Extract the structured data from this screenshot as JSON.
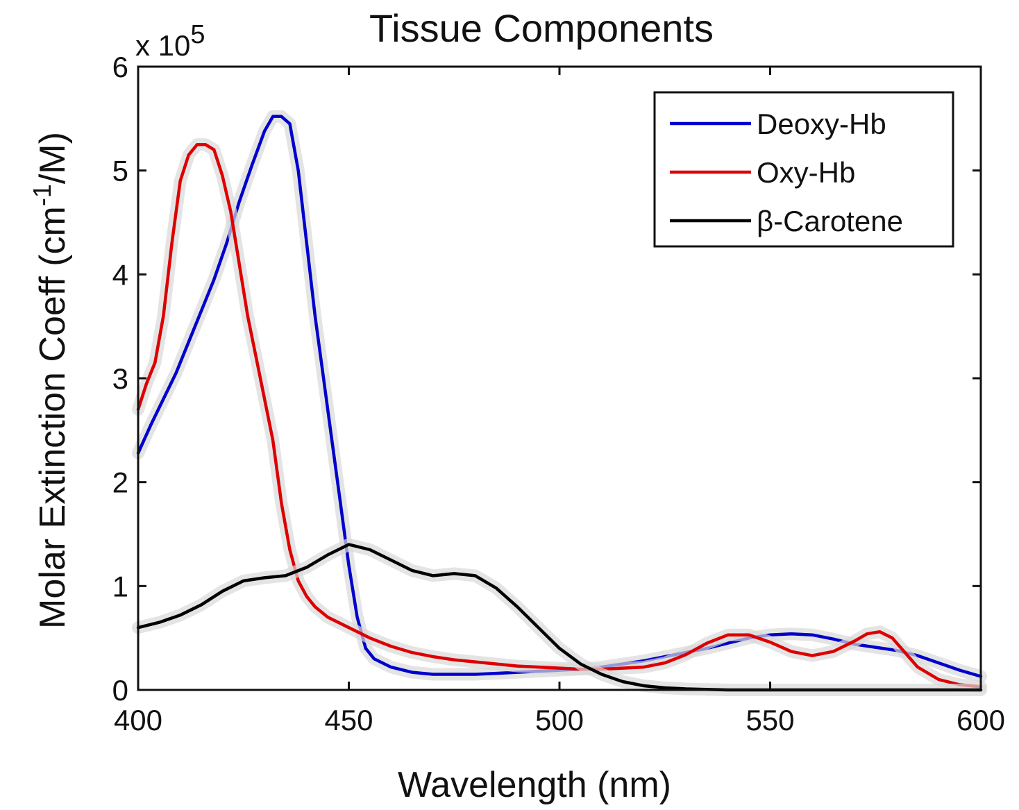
{
  "chart_data": {
    "type": "line",
    "title": "Tissue Components",
    "xlabel": "Wavelength (nm)",
    "ylabel": "Molar Extinction Coeff (cm-1/M)",
    "ylabel_parts": {
      "pre": "Molar Extinction Coeff (cm",
      "sup": "-1",
      "post": "/M)"
    },
    "y_multiplier": {
      "base": "x 10",
      "exp": "5"
    },
    "xlim": [
      400,
      600
    ],
    "ylim": [
      0,
      6
    ],
    "x_ticks": [
      400,
      450,
      500,
      550,
      600
    ],
    "y_ticks": [
      0,
      1,
      2,
      3,
      4,
      5,
      6
    ],
    "legend_position": "top-right",
    "series": [
      {
        "name": "Deoxy-Hb",
        "color": "#0000cc",
        "points": [
          [
            400,
            2.28
          ],
          [
            403,
            2.55
          ],
          [
            406,
            2.8
          ],
          [
            409,
            3.05
          ],
          [
            412,
            3.35
          ],
          [
            415,
            3.65
          ],
          [
            418,
            3.95
          ],
          [
            421,
            4.3
          ],
          [
            424,
            4.7
          ],
          [
            427,
            5.05
          ],
          [
            430,
            5.38
          ],
          [
            432,
            5.52
          ],
          [
            434,
            5.52
          ],
          [
            436,
            5.45
          ],
          [
            438,
            5.0
          ],
          [
            440,
            4.3
          ],
          [
            442,
            3.6
          ],
          [
            444,
            3.0
          ],
          [
            446,
            2.4
          ],
          [
            448,
            1.8
          ],
          [
            450,
            1.2
          ],
          [
            452,
            0.7
          ],
          [
            454,
            0.4
          ],
          [
            456,
            0.3
          ],
          [
            460,
            0.22
          ],
          [
            465,
            0.17
          ],
          [
            470,
            0.15
          ],
          [
            475,
            0.15
          ],
          [
            480,
            0.15
          ],
          [
            485,
            0.16
          ],
          [
            490,
            0.17
          ],
          [
            495,
            0.18
          ],
          [
            500,
            0.19
          ],
          [
            505,
            0.2
          ],
          [
            510,
            0.22
          ],
          [
            515,
            0.25
          ],
          [
            520,
            0.28
          ],
          [
            525,
            0.32
          ],
          [
            530,
            0.36
          ],
          [
            535,
            0.4
          ],
          [
            540,
            0.45
          ],
          [
            545,
            0.5
          ],
          [
            550,
            0.53
          ],
          [
            555,
            0.54
          ],
          [
            560,
            0.53
          ],
          [
            565,
            0.49
          ],
          [
            570,
            0.44
          ],
          [
            575,
            0.41
          ],
          [
            580,
            0.38
          ],
          [
            585,
            0.33
          ],
          [
            590,
            0.26
          ],
          [
            595,
            0.19
          ],
          [
            600,
            0.13
          ]
        ]
      },
      {
        "name": "Oxy-Hb",
        "color": "#dd0000",
        "points": [
          [
            400,
            2.7
          ],
          [
            402,
            2.95
          ],
          [
            404,
            3.15
          ],
          [
            406,
            3.6
          ],
          [
            408,
            4.3
          ],
          [
            410,
            4.9
          ],
          [
            412,
            5.15
          ],
          [
            414,
            5.25
          ],
          [
            416,
            5.25
          ],
          [
            418,
            5.2
          ],
          [
            420,
            4.95
          ],
          [
            422,
            4.6
          ],
          [
            424,
            4.1
          ],
          [
            426,
            3.6
          ],
          [
            428,
            3.2
          ],
          [
            430,
            2.8
          ],
          [
            432,
            2.4
          ],
          [
            434,
            1.8
          ],
          [
            436,
            1.35
          ],
          [
            438,
            1.05
          ],
          [
            440,
            0.9
          ],
          [
            442,
            0.8
          ],
          [
            445,
            0.7
          ],
          [
            450,
            0.6
          ],
          [
            455,
            0.5
          ],
          [
            460,
            0.42
          ],
          [
            465,
            0.36
          ],
          [
            470,
            0.32
          ],
          [
            475,
            0.29
          ],
          [
            480,
            0.27
          ],
          [
            485,
            0.25
          ],
          [
            490,
            0.23
          ],
          [
            495,
            0.22
          ],
          [
            500,
            0.21
          ],
          [
            505,
            0.2
          ],
          [
            510,
            0.2
          ],
          [
            515,
            0.21
          ],
          [
            520,
            0.22
          ],
          [
            525,
            0.26
          ],
          [
            530,
            0.34
          ],
          [
            535,
            0.45
          ],
          [
            540,
            0.53
          ],
          [
            545,
            0.53
          ],
          [
            550,
            0.46
          ],
          [
            555,
            0.37
          ],
          [
            560,
            0.33
          ],
          [
            565,
            0.37
          ],
          [
            570,
            0.47
          ],
          [
            573,
            0.54
          ],
          [
            576,
            0.56
          ],
          [
            579,
            0.5
          ],
          [
            582,
            0.36
          ],
          [
            585,
            0.22
          ],
          [
            590,
            0.1
          ],
          [
            595,
            0.05
          ],
          [
            600,
            0.03
          ]
        ]
      },
      {
        "name": "β-Carotene",
        "color": "#000000",
        "points": [
          [
            400,
            0.6
          ],
          [
            405,
            0.65
          ],
          [
            410,
            0.72
          ],
          [
            415,
            0.82
          ],
          [
            420,
            0.95
          ],
          [
            425,
            1.05
          ],
          [
            430,
            1.08
          ],
          [
            435,
            1.1
          ],
          [
            440,
            1.18
          ],
          [
            445,
            1.3
          ],
          [
            450,
            1.4
          ],
          [
            455,
            1.35
          ],
          [
            460,
            1.25
          ],
          [
            465,
            1.15
          ],
          [
            470,
            1.1
          ],
          [
            475,
            1.12
          ],
          [
            480,
            1.1
          ],
          [
            485,
            0.98
          ],
          [
            490,
            0.8
          ],
          [
            495,
            0.6
          ],
          [
            500,
            0.4
          ],
          [
            505,
            0.25
          ],
          [
            510,
            0.15
          ],
          [
            515,
            0.08
          ],
          [
            520,
            0.04
          ],
          [
            525,
            0.02
          ],
          [
            530,
            0.01
          ],
          [
            540,
            0.0
          ],
          [
            550,
            0.0
          ],
          [
            600,
            0.0
          ]
        ]
      }
    ]
  }
}
